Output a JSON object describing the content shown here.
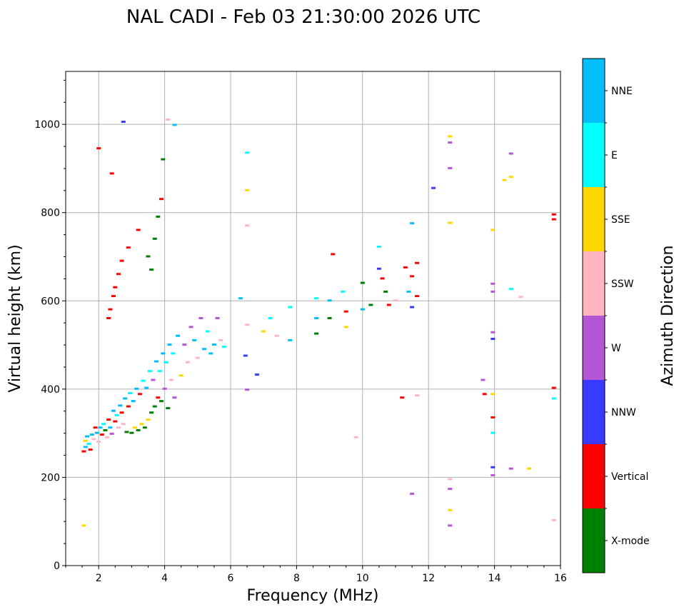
{
  "chart_data": {
    "type": "scatter",
    "title": "NAL CADI - Feb 03 21:30:00 2026 UTC",
    "xlabel": "Frequency (MHz)",
    "ylabel": "Virtual height (km)",
    "xlim": [
      1,
      16
    ],
    "ylim": [
      0,
      1120
    ],
    "xticks": [
      2,
      4,
      6,
      8,
      10,
      12,
      14,
      16
    ],
    "yticks": [
      0,
      200,
      400,
      600,
      800,
      1000
    ],
    "grid": true,
    "colorbar": {
      "label": "Azimuth Direction",
      "placement": "right",
      "categories": [
        {
          "name": "X-mode",
          "color": "#008000"
        },
        {
          "name": "Vertical",
          "color": "#ff0000"
        },
        {
          "name": "NNW",
          "color": "#3a3aff"
        },
        {
          "name": "W",
          "color": "#b556d6"
        },
        {
          "name": "SSW",
          "color": "#ffb6c1"
        },
        {
          "name": "SSE",
          "color": "#ffd700"
        },
        {
          "name": "E",
          "color": "#00ffff"
        },
        {
          "name": "NNE",
          "color": "#00bfff"
        }
      ]
    },
    "points": [
      {
        "f": 1.55,
        "h": 90,
        "dir": "SSE"
      },
      {
        "f": 1.55,
        "h": 258,
        "dir": "Vertical"
      },
      {
        "f": 1.6,
        "h": 268,
        "dir": "NNE"
      },
      {
        "f": 1.6,
        "h": 282,
        "dir": "SSE"
      },
      {
        "f": 1.65,
        "h": 292,
        "dir": "NNE"
      },
      {
        "f": 1.7,
        "h": 275,
        "dir": "E"
      },
      {
        "f": 1.75,
        "h": 262,
        "dir": "Vertical"
      },
      {
        "f": 1.8,
        "h": 296,
        "dir": "NNE"
      },
      {
        "f": 1.85,
        "h": 286,
        "dir": "SSW"
      },
      {
        "f": 1.9,
        "h": 312,
        "dir": "Vertical"
      },
      {
        "f": 1.95,
        "h": 300,
        "dir": "NNE"
      },
      {
        "f": 2.0,
        "h": 280,
        "dir": "SSW"
      },
      {
        "f": 2.05,
        "h": 312,
        "dir": "NNE"
      },
      {
        "f": 2.1,
        "h": 296,
        "dir": "Vertical"
      },
      {
        "f": 2.15,
        "h": 320,
        "dir": "E"
      },
      {
        "f": 2.2,
        "h": 306,
        "dir": "X-mode"
      },
      {
        "f": 2.25,
        "h": 290,
        "dir": "SSW"
      },
      {
        "f": 2.3,
        "h": 330,
        "dir": "Vertical"
      },
      {
        "f": 2.35,
        "h": 312,
        "dir": "NNE"
      },
      {
        "f": 2.4,
        "h": 298,
        "dir": "W"
      },
      {
        "f": 2.45,
        "h": 350,
        "dir": "NNE"
      },
      {
        "f": 2.5,
        "h": 326,
        "dir": "Vertical"
      },
      {
        "f": 2.55,
        "h": 340,
        "dir": "E"
      },
      {
        "f": 2.6,
        "h": 312,
        "dir": "SSW"
      },
      {
        "f": 2.65,
        "h": 362,
        "dir": "NNE"
      },
      {
        "f": 2.7,
        "h": 346,
        "dir": "Vertical"
      },
      {
        "f": 2.75,
        "h": 320,
        "dir": "SSW"
      },
      {
        "f": 2.8,
        "h": 378,
        "dir": "NNE"
      },
      {
        "f": 2.85,
        "h": 302,
        "dir": "X-mode"
      },
      {
        "f": 2.9,
        "h": 360,
        "dir": "Vertical"
      },
      {
        "f": 2.95,
        "h": 390,
        "dir": "E"
      },
      {
        "f": 3.0,
        "h": 300,
        "dir": "X-mode"
      },
      {
        "f": 3.05,
        "h": 372,
        "dir": "NNE"
      },
      {
        "f": 3.1,
        "h": 312,
        "dir": "SSE"
      },
      {
        "f": 3.15,
        "h": 400,
        "dir": "NNE"
      },
      {
        "f": 3.2,
        "h": 306,
        "dir": "X-mode"
      },
      {
        "f": 3.25,
        "h": 388,
        "dir": "Vertical"
      },
      {
        "f": 3.3,
        "h": 320,
        "dir": "SSE"
      },
      {
        "f": 3.35,
        "h": 418,
        "dir": "E"
      },
      {
        "f": 3.4,
        "h": 312,
        "dir": "X-mode"
      },
      {
        "f": 3.45,
        "h": 402,
        "dir": "NNE"
      },
      {
        "f": 3.5,
        "h": 330,
        "dir": "SSE"
      },
      {
        "f": 3.55,
        "h": 440,
        "dir": "E"
      },
      {
        "f": 3.6,
        "h": 346,
        "dir": "X-mode"
      },
      {
        "f": 3.65,
        "h": 420,
        "dir": "W"
      },
      {
        "f": 3.7,
        "h": 360,
        "dir": "X-mode"
      },
      {
        "f": 3.75,
        "h": 462,
        "dir": "NNE"
      },
      {
        "f": 3.8,
        "h": 380,
        "dir": "Vertical"
      },
      {
        "f": 3.85,
        "h": 440,
        "dir": "E"
      },
      {
        "f": 3.9,
        "h": 372,
        "dir": "X-mode"
      },
      {
        "f": 3.95,
        "h": 480,
        "dir": "NNE"
      },
      {
        "f": 4.0,
        "h": 400,
        "dir": "W"
      },
      {
        "f": 4.05,
        "h": 460,
        "dir": "E"
      },
      {
        "f": 4.1,
        "h": 356,
        "dir": "X-mode"
      },
      {
        "f": 4.15,
        "h": 500,
        "dir": "NNE"
      },
      {
        "f": 4.2,
        "h": 420,
        "dir": "SSW"
      },
      {
        "f": 4.25,
        "h": 480,
        "dir": "E"
      },
      {
        "f": 4.3,
        "h": 380,
        "dir": "W"
      },
      {
        "f": 4.4,
        "h": 520,
        "dir": "NNE"
      },
      {
        "f": 4.5,
        "h": 430,
        "dir": "SSE"
      },
      {
        "f": 4.6,
        "h": 500,
        "dir": "W"
      },
      {
        "f": 4.7,
        "h": 460,
        "dir": "SSW"
      },
      {
        "f": 4.8,
        "h": 540,
        "dir": "W"
      },
      {
        "f": 4.9,
        "h": 510,
        "dir": "NNE"
      },
      {
        "f": 5.0,
        "h": 470,
        "dir": "SSW"
      },
      {
        "f": 5.1,
        "h": 560,
        "dir": "W"
      },
      {
        "f": 5.2,
        "h": 490,
        "dir": "NNE"
      },
      {
        "f": 5.3,
        "h": 530,
        "dir": "E"
      },
      {
        "f": 5.4,
        "h": 480,
        "dir": "NNE"
      },
      {
        "f": 5.5,
        "h": 500,
        "dir": "NNE"
      },
      {
        "f": 5.6,
        "h": 560,
        "dir": "W"
      },
      {
        "f": 5.7,
        "h": 510,
        "dir": "SSW"
      },
      {
        "f": 5.8,
        "h": 495,
        "dir": "E"
      },
      {
        "f": 2.3,
        "h": 560,
        "dir": "Vertical"
      },
      {
        "f": 2.35,
        "h": 580,
        "dir": "Vertical"
      },
      {
        "f": 2.45,
        "h": 610,
        "dir": "Vertical"
      },
      {
        "f": 2.5,
        "h": 630,
        "dir": "Vertical"
      },
      {
        "f": 2.6,
        "h": 660,
        "dir": "Vertical"
      },
      {
        "f": 2.7,
        "h": 690,
        "dir": "Vertical"
      },
      {
        "f": 2.9,
        "h": 720,
        "dir": "Vertical"
      },
      {
        "f": 3.2,
        "h": 760,
        "dir": "Vertical"
      },
      {
        "f": 3.5,
        "h": 700,
        "dir": "X-mode"
      },
      {
        "f": 3.6,
        "h": 670,
        "dir": "X-mode"
      },
      {
        "f": 3.7,
        "h": 740,
        "dir": "X-mode"
      },
      {
        "f": 3.8,
        "h": 790,
        "dir": "X-mode"
      },
      {
        "f": 3.9,
        "h": 830,
        "dir": "Vertical"
      },
      {
        "f": 3.95,
        "h": 920,
        "dir": "X-mode"
      },
      {
        "f": 2.0,
        "h": 945,
        "dir": "Vertical"
      },
      {
        "f": 2.4,
        "h": 888,
        "dir": "Vertical"
      },
      {
        "f": 2.75,
        "h": 1005,
        "dir": "NNW"
      },
      {
        "f": 4.1,
        "h": 1010,
        "dir": "SSW"
      },
      {
        "f": 4.3,
        "h": 998,
        "dir": "NNE"
      },
      {
        "f": 6.5,
        "h": 935,
        "dir": "E"
      },
      {
        "f": 6.5,
        "h": 850,
        "dir": "SSE"
      },
      {
        "f": 6.5,
        "h": 770,
        "dir": "SSW"
      },
      {
        "f": 6.3,
        "h": 605,
        "dir": "NNE"
      },
      {
        "f": 6.5,
        "h": 545,
        "dir": "SSW"
      },
      {
        "f": 6.45,
        "h": 475,
        "dir": "NNW"
      },
      {
        "f": 6.5,
        "h": 398,
        "dir": "W"
      },
      {
        "f": 6.8,
        "h": 432,
        "dir": "NNW"
      },
      {
        "f": 7.0,
        "h": 530,
        "dir": "SSE"
      },
      {
        "f": 7.2,
        "h": 560,
        "dir": "E"
      },
      {
        "f": 7.4,
        "h": 520,
        "dir": "SSW"
      },
      {
        "f": 7.8,
        "h": 585,
        "dir": "E"
      },
      {
        "f": 7.8,
        "h": 510,
        "dir": "NNE"
      },
      {
        "f": 8.6,
        "h": 605,
        "dir": "E"
      },
      {
        "f": 8.6,
        "h": 560,
        "dir": "NNE"
      },
      {
        "f": 8.6,
        "h": 525,
        "dir": "X-mode"
      },
      {
        "f": 9.0,
        "h": 600,
        "dir": "NNE"
      },
      {
        "f": 9.0,
        "h": 560,
        "dir": "X-mode"
      },
      {
        "f": 9.1,
        "h": 705,
        "dir": "Vertical"
      },
      {
        "f": 9.4,
        "h": 620,
        "dir": "E"
      },
      {
        "f": 9.5,
        "h": 575,
        "dir": "Vertical"
      },
      {
        "f": 9.5,
        "h": 540,
        "dir": "SSE"
      },
      {
        "f": 9.8,
        "h": 290,
        "dir": "SSW"
      },
      {
        "f": 10.0,
        "h": 640,
        "dir": "X-mode"
      },
      {
        "f": 10.0,
        "h": 580,
        "dir": "NNE"
      },
      {
        "f": 10.25,
        "h": 590,
        "dir": "X-mode"
      },
      {
        "f": 10.5,
        "h": 672,
        "dir": "NNW"
      },
      {
        "f": 10.5,
        "h": 722,
        "dir": "E"
      },
      {
        "f": 10.6,
        "h": 650,
        "dir": "Vertical"
      },
      {
        "f": 10.7,
        "h": 620,
        "dir": "X-mode"
      },
      {
        "f": 10.8,
        "h": 590,
        "dir": "Vertical"
      },
      {
        "f": 11.0,
        "h": 600,
        "dir": "SSW"
      },
      {
        "f": 11.2,
        "h": 380,
        "dir": "Vertical"
      },
      {
        "f": 11.3,
        "h": 675,
        "dir": "Vertical"
      },
      {
        "f": 11.4,
        "h": 620,
        "dir": "NNE"
      },
      {
        "f": 11.5,
        "h": 775,
        "dir": "NNE"
      },
      {
        "f": 11.5,
        "h": 655,
        "dir": "Vertical"
      },
      {
        "f": 11.5,
        "h": 585,
        "dir": "NNW"
      },
      {
        "f": 11.5,
        "h": 162,
        "dir": "W"
      },
      {
        "f": 11.65,
        "h": 685,
        "dir": "Vertical"
      },
      {
        "f": 11.65,
        "h": 610,
        "dir": "Vertical"
      },
      {
        "f": 11.65,
        "h": 385,
        "dir": "SSW"
      },
      {
        "f": 12.15,
        "h": 855,
        "dir": "NNW"
      },
      {
        "f": 12.65,
        "h": 972,
        "dir": "SSE"
      },
      {
        "f": 12.65,
        "h": 958,
        "dir": "W"
      },
      {
        "f": 12.65,
        "h": 900,
        "dir": "W"
      },
      {
        "f": 12.65,
        "h": 776,
        "dir": "SSE"
      },
      {
        "f": 12.65,
        "h": 195,
        "dir": "SSW"
      },
      {
        "f": 12.65,
        "h": 173,
        "dir": "W"
      },
      {
        "f": 12.65,
        "h": 125,
        "dir": "SSE"
      },
      {
        "f": 12.65,
        "h": 90,
        "dir": "W"
      },
      {
        "f": 13.65,
        "h": 420,
        "dir": "W"
      },
      {
        "f": 13.95,
        "h": 760,
        "dir": "SSE"
      },
      {
        "f": 13.95,
        "h": 638,
        "dir": "W"
      },
      {
        "f": 13.95,
        "h": 620,
        "dir": "W"
      },
      {
        "f": 13.95,
        "h": 528,
        "dir": "W"
      },
      {
        "f": 13.95,
        "h": 513,
        "dir": "NNW"
      },
      {
        "f": 13.95,
        "h": 388,
        "dir": "SSE"
      },
      {
        "f": 13.7,
        "h": 388,
        "dir": "Vertical"
      },
      {
        "f": 13.95,
        "h": 335,
        "dir": "Vertical"
      },
      {
        "f": 13.95,
        "h": 300,
        "dir": "E"
      },
      {
        "f": 13.95,
        "h": 222,
        "dir": "NNW"
      },
      {
        "f": 13.95,
        "h": 204,
        "dir": "W"
      },
      {
        "f": 14.3,
        "h": 873,
        "dir": "SSE"
      },
      {
        "f": 14.5,
        "h": 933,
        "dir": "W"
      },
      {
        "f": 14.5,
        "h": 880,
        "dir": "SSE"
      },
      {
        "f": 14.5,
        "h": 626,
        "dir": "E"
      },
      {
        "f": 14.5,
        "h": 219,
        "dir": "W"
      },
      {
        "f": 14.8,
        "h": 608,
        "dir": "SSW"
      },
      {
        "f": 15.05,
        "h": 219,
        "dir": "SSE"
      },
      {
        "f": 15.8,
        "h": 795,
        "dir": "Vertical"
      },
      {
        "f": 15.8,
        "h": 784,
        "dir": "Vertical"
      },
      {
        "f": 15.8,
        "h": 402,
        "dir": "Vertical"
      },
      {
        "f": 15.8,
        "h": 378,
        "dir": "E"
      },
      {
        "f": 15.8,
        "h": 102,
        "dir": "SSW"
      }
    ]
  }
}
